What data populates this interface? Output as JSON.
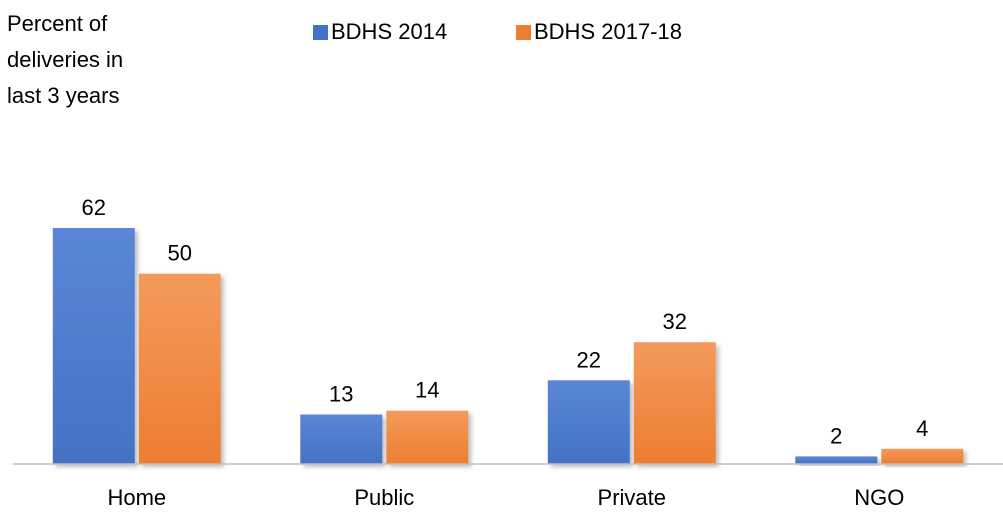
{
  "chart_data": {
    "type": "bar",
    "title": "",
    "ylabel_lines": [
      "Percent of",
      "deliveries in",
      "last 3 years"
    ],
    "xlabel": "",
    "categories": [
      "Home",
      "Public",
      "Private",
      "NGO"
    ],
    "series": [
      {
        "name": "BDHS 2014",
        "values": [
          62,
          13,
          22,
          2
        ],
        "color": "#4472C4",
        "color_light": "#5B86D6"
      },
      {
        "name": "BDHS 2017-18",
        "values": [
          50,
          14,
          32,
          4
        ],
        "color": "#ED7D31",
        "color_light": "#F39A5C"
      }
    ],
    "ylim": [
      0,
      62
    ],
    "grid": false,
    "legend_position": "top",
    "data_labels": true
  },
  "colors": {
    "axis": "#BFBFBF",
    "text": "#000000"
  }
}
